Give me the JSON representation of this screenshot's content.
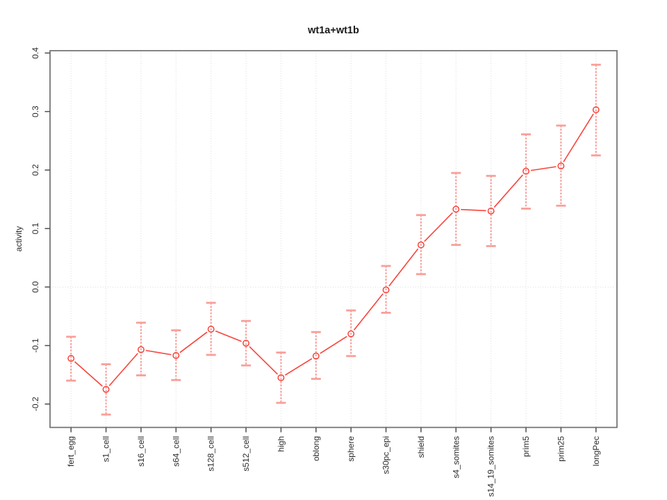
{
  "figure": {
    "title": "wt1a+wt1b",
    "y_axis_label": "activity"
  },
  "chart_data": {
    "type": "line",
    "title": "wt1a+wt1b",
    "xlabel": "",
    "ylabel": "activity",
    "categories": [
      "fert_egg",
      "s1_cell",
      "s16_cell",
      "s64_cell",
      "s128_cell",
      "s512_cell",
      "high",
      "oblong",
      "sphere",
      "s30pc_epi",
      "shield",
      "s4_somites",
      "s14_19_somites",
      "prim5",
      "prim25",
      "longPec"
    ],
    "series": [
      {
        "name": "wt1a+wt1b activity",
        "values": [
          -0.122,
          -0.175,
          -0.107,
          -0.117,
          -0.072,
          -0.096,
          -0.155,
          -0.118,
          -0.08,
          -0.005,
          0.072,
          0.133,
          0.13,
          0.198,
          0.207,
          0.303
        ],
        "error_upper": [
          -0.085,
          -0.132,
          -0.061,
          -0.074,
          -0.027,
          -0.058,
          -0.112,
          -0.077,
          -0.04,
          0.036,
          0.123,
          0.195,
          0.19,
          0.261,
          0.276,
          0.38
        ],
        "error_lower": [
          -0.16,
          -0.218,
          -0.151,
          -0.159,
          -0.116,
          -0.134,
          -0.198,
          -0.157,
          -0.118,
          -0.044,
          0.022,
          0.072,
          0.07,
          0.134,
          0.139,
          0.225
        ]
      }
    ],
    "xlim": [
      0.4,
      16.6
    ],
    "ylim": [
      -0.24,
      0.404
    ],
    "yticks": [
      -0.2,
      -0.1,
      0.0,
      0.1,
      0.2,
      0.3,
      0.4
    ],
    "ytick_labels": [
      "-0.2",
      "-0.1",
      "0.0",
      "0.1",
      "0.2",
      "0.3",
      "0.4"
    ],
    "marker": "open-circle",
    "legend_position": "none",
    "grid": {
      "vertical_dotted_at_each_category": true,
      "horizontal_dotted_at_zero": true
    },
    "colors": {
      "series_line": "#f8433a",
      "marker": "#f8433a",
      "error_bar_line": "#f87f78",
      "error_bar_cap": "#f99f99",
      "gridline": "#d9d9d9",
      "axis_box": "#6f6f6f",
      "tick": "#4d4d4d",
      "text": "#2b2b2b",
      "background": "#ffffff"
    }
  }
}
